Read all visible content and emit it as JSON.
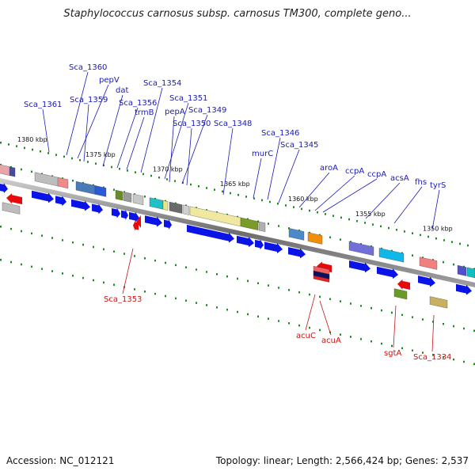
{
  "title": "Staphylococcus carnosus subsp. carnosus TM300, complete geno...",
  "footer": {
    "accession": "Accession: NC_012121",
    "summary": "Topology: linear; Length: 2,566,424 bp; Genes: 2,537"
  },
  "colors": {
    "forward_label": "#1a1ab4",
    "reverse_label": "#c81414",
    "backbone": "#8a8a8a",
    "cds_forward": "#0a14e6",
    "cds_reverse": "#e60a0a",
    "tick": "#1f8a1f"
  },
  "scale_labels": [
    "1380 kbp",
    "1375 kbp",
    "1370 kbp",
    "1365 kbp",
    "1360 kbp",
    "1355 kbp",
    "1350 kbp"
  ],
  "top_genes": [
    "Sca_1361",
    "Sca_1360",
    "pepV",
    "Sca_1359",
    "dat",
    "Sca_1356",
    "trmB",
    "Sca_1354",
    "Sca_1351",
    "pepA",
    "Sca_1349",
    "Sca_1350",
    "Sca_1348",
    "murC",
    "Sca_1346",
    "Sca_1345",
    "aroA",
    "ccpA",
    "ccpA",
    "acsA",
    "fhs",
    "tyrS"
  ],
  "bottom_genes": [
    "Sca_1353",
    "acuC",
    "acuA",
    "sgtA",
    "Sca_1334"
  ]
}
